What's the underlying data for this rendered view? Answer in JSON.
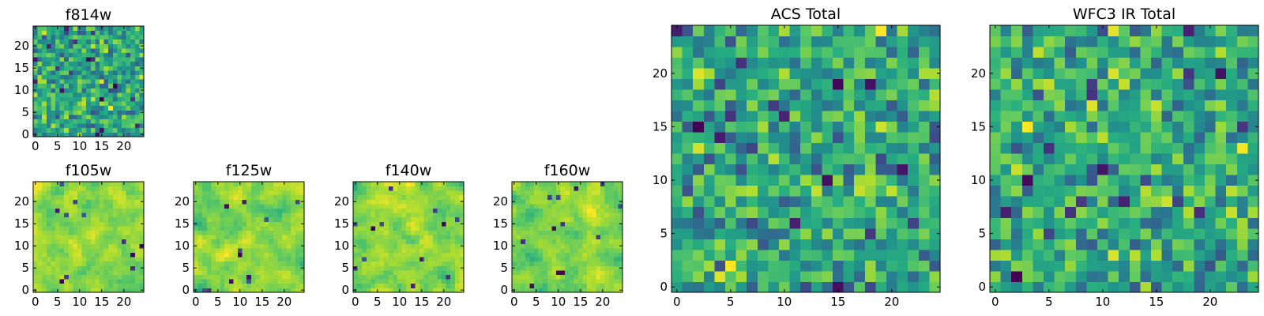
{
  "figure_colors": {
    "background": "#ffffff",
    "frame": "#000000",
    "colormap": [
      "#440154",
      "#3b528b",
      "#21918c",
      "#5ec962",
      "#fde725"
    ]
  },
  "chart_data": [
    {
      "name": "f814w",
      "type": "heatmap",
      "title": "f814w",
      "xlabel": "",
      "ylabel": "",
      "xlim": [
        -0.5,
        24.5
      ],
      "ylim": [
        -0.5,
        24.5
      ],
      "xticks": [
        0,
        5,
        10,
        15,
        20
      ],
      "yticks": [
        0,
        5,
        10,
        15,
        20
      ],
      "grid_size": [
        25,
        25
      ],
      "colormap": "viridis",
      "seed": 11,
      "smoothing": 0
    },
    {
      "name": "f105w",
      "type": "heatmap",
      "title": "f105w",
      "xlabel": "",
      "ylabel": "",
      "xlim": [
        -0.5,
        24.5
      ],
      "ylim": [
        -0.5,
        24.5
      ],
      "xticks": [
        0,
        5,
        10,
        15,
        20
      ],
      "yticks": [
        0,
        5,
        10,
        15,
        20
      ],
      "grid_size": [
        25,
        25
      ],
      "colormap": "viridis",
      "seed": 23,
      "smoothing": 2
    },
    {
      "name": "f125w",
      "type": "heatmap",
      "title": "f125w",
      "xlabel": "",
      "ylabel": "",
      "xlim": [
        -0.5,
        24.5
      ],
      "ylim": [
        -0.5,
        24.5
      ],
      "xticks": [
        0,
        5,
        10,
        15,
        20
      ],
      "yticks": [
        0,
        5,
        10,
        15,
        20
      ],
      "grid_size": [
        25,
        25
      ],
      "colormap": "viridis",
      "seed": 37,
      "smoothing": 2
    },
    {
      "name": "f140w",
      "type": "heatmap",
      "title": "f140w",
      "xlabel": "",
      "ylabel": "",
      "xlim": [
        -0.5,
        24.5
      ],
      "ylim": [
        -0.5,
        24.5
      ],
      "xticks": [
        0,
        5,
        10,
        15,
        20
      ],
      "yticks": [
        0,
        5,
        10,
        15,
        20
      ],
      "grid_size": [
        25,
        25
      ],
      "colormap": "viridis",
      "seed": 41,
      "smoothing": 2
    },
    {
      "name": "f160w",
      "type": "heatmap",
      "title": "f160w",
      "xlabel": "",
      "ylabel": "",
      "xlim": [
        -0.5,
        24.5
      ],
      "ylim": [
        -0.5,
        24.5
      ],
      "xticks": [
        0,
        5,
        10,
        15,
        20
      ],
      "yticks": [
        0,
        5,
        10,
        15,
        20
      ],
      "grid_size": [
        25,
        25
      ],
      "colormap": "viridis",
      "seed": 53,
      "smoothing": 2
    },
    {
      "name": "acs-total",
      "type": "heatmap",
      "title": "ACS Total",
      "xlabel": "",
      "ylabel": "",
      "xlim": [
        -0.5,
        24.5
      ],
      "ylim": [
        -0.5,
        24.5
      ],
      "xticks": [
        0,
        5,
        10,
        15,
        20
      ],
      "yticks": [
        0,
        5,
        10,
        15,
        20
      ],
      "grid_size": [
        25,
        25
      ],
      "colormap": "viridis",
      "seed": 67,
      "smoothing": 0
    },
    {
      "name": "wfc3-ir-total",
      "type": "heatmap",
      "title": "WFC3 IR Total",
      "xlabel": "",
      "ylabel": "",
      "xlim": [
        -0.5,
        24.5
      ],
      "ylim": [
        -0.5,
        24.5
      ],
      "xticks": [
        0,
        5,
        10,
        15,
        20
      ],
      "yticks": [
        0,
        5,
        10,
        15,
        20
      ],
      "grid_size": [
        25,
        25
      ],
      "colormap": "viridis",
      "seed": 79,
      "smoothing": 0
    }
  ]
}
